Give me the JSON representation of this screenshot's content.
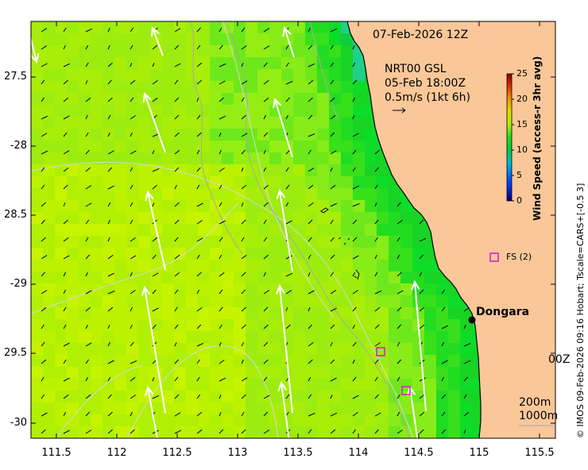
{
  "map": {
    "timestamp": "07-Feb-2026 12Z",
    "source_label": "NRT00 GSL",
    "source_time": "05-Feb 18:00Z",
    "reference_vector": "0.5m/s (1kt 6h)",
    "town_label": "Dongara",
    "station_label": "FS (2)",
    "partial_label": "00Z",
    "depth_200": "200m",
    "depth_1000": "1000m",
    "footer": "© IMOS 09-Feb-2026 09:16 Hobart; Tscale=CARS+[-0.5 3]",
    "colors": {
      "land": "#fac799",
      "coast": "#000000",
      "marker": "#d01ad0",
      "arrow": "#ffffff"
    }
  },
  "axes": {
    "lon_ticks": [
      "111.5",
      "112",
      "112.5",
      "113",
      "113.5",
      "114",
      "114.5",
      "115",
      "115.5"
    ],
    "lat_ticks": [
      "27.5",
      "-28",
      "28.5",
      "-29",
      "29.5",
      "-30"
    ]
  },
  "colorbar": {
    "title": "Wind Speed (access-r 3hr avg)",
    "ticks": [
      "25",
      "20",
      "15",
      "10",
      "5",
      "0"
    ],
    "min": 0,
    "max": 25
  }
}
